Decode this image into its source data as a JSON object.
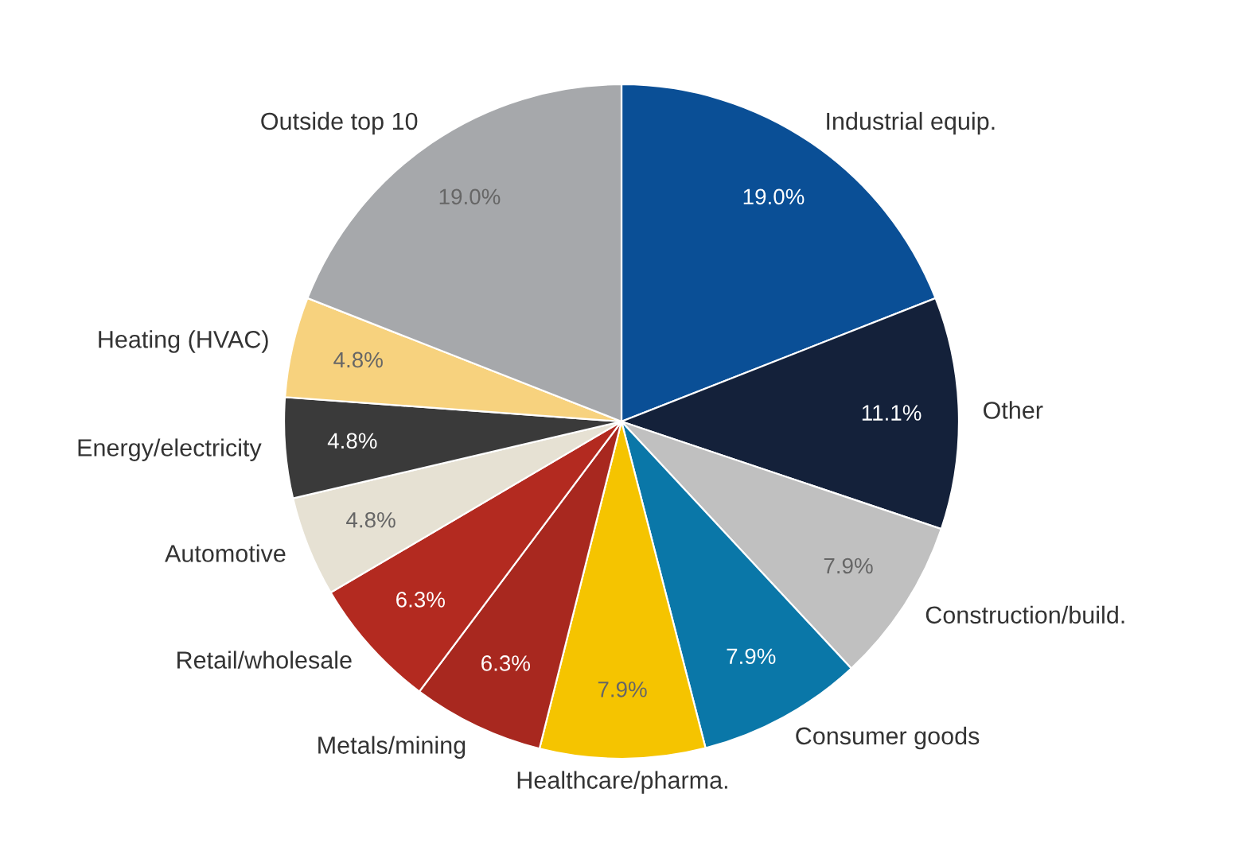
{
  "chart_data": {
    "type": "pie",
    "categories": [
      "Industrial equip.",
      "Other",
      "Construction/build.",
      "Consumer goods",
      "Healthcare/pharma.",
      "Metals/mining",
      "Retail/wholesale",
      "Automotive",
      "Energy/electricity",
      "Heating (HVAC)",
      "Outside top 10"
    ],
    "values": [
      19.0,
      11.1,
      7.9,
      7.9,
      7.9,
      6.3,
      6.3,
      4.8,
      4.8,
      4.8,
      19.0
    ],
    "value_labels": [
      "19.0%",
      "11.1%",
      "7.9%",
      "7.9%",
      "7.9%",
      "6.3%",
      "6.3%",
      "4.8%",
      "4.8%",
      "4.8%",
      "19.0%"
    ],
    "colors": [
      "#0a4f96",
      "#14213a",
      "#c0c0c0",
      "#0a77a8",
      "#f5c400",
      "#a8281f",
      "#b32a20",
      "#e6e1d3",
      "#3a3a3a",
      "#f7d27e",
      "#a6a8ab"
    ]
  }
}
